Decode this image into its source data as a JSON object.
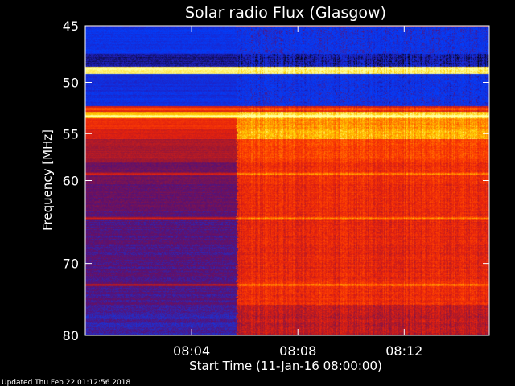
{
  "chart_data": {
    "type": "heatmap",
    "title": "Solar radio Flux (Glasgow)",
    "ylabel": "Frequency [MHz]",
    "xlabel": "Start Time (11-Jan-16 08:00:00)",
    "x_unit": "minutes after 08:00:00",
    "xlim": [
      0,
      15.2
    ],
    "ylim": [
      80,
      45
    ],
    "y_scale": "log",
    "x_ticks": [
      {
        "value": 4,
        "label": "08:04"
      },
      {
        "value": 8,
        "label": "08:08"
      },
      {
        "value": 12,
        "label": "08:12"
      }
    ],
    "y_ticks": [
      {
        "value": 45,
        "label": "45"
      },
      {
        "value": 50,
        "label": "50"
      },
      {
        "value": 55,
        "label": "55"
      },
      {
        "value": 60,
        "label": "60"
      },
      {
        "value": 70,
        "label": "70"
      },
      {
        "value": 80,
        "label": "80"
      }
    ],
    "transition_minute": 5.7,
    "colormap": [
      "#000000",
      "#2020c0",
      "#0040ff",
      "#5a1070",
      "#a01830",
      "#e02010",
      "#ff4000",
      "#ff8000",
      "#ffd000",
      "#ffffa0"
    ],
    "bands": [
      {
        "from": 45,
        "to": 47.4,
        "before": 0.18,
        "after": 0.22
      },
      {
        "from": 47.4,
        "to": 48.5,
        "before": 0.08,
        "after": 0.1
      },
      {
        "from": 48.5,
        "to": 49.2,
        "before": 0.98,
        "after": 0.98
      },
      {
        "from": 49.2,
        "to": 52.2,
        "before": 0.16,
        "after": 0.2
      },
      {
        "from": 52.2,
        "to": 52.8,
        "before": 0.55,
        "after": 0.55
      },
      {
        "from": 52.8,
        "to": 53.4,
        "before": 0.85,
        "after": 0.9
      },
      {
        "from": 53.4,
        "to": 54.5,
        "before": 0.6,
        "after": 0.8
      },
      {
        "from": 54.5,
        "to": 55.5,
        "before": 0.55,
        "after": 0.86
      },
      {
        "from": 55.5,
        "to": 58.0,
        "before": 0.46,
        "after": 0.66
      },
      {
        "from": 58.0,
        "to": 63.5,
        "before": 0.36,
        "after": 0.6
      },
      {
        "from": 63.5,
        "to": 72.0,
        "before": 0.33,
        "after": 0.58
      },
      {
        "from": 72.0,
        "to": 75.5,
        "before": 0.32,
        "after": 0.6
      },
      {
        "from": 75.5,
        "to": 80,
        "before": 0.3,
        "after": 0.5
      }
    ],
    "bright_lines_mhz": [
      52.5,
      53.2,
      59.2,
      64.3,
      72.8
    ]
  },
  "footer": {
    "updated": "Updated Thu Feb 22 01:12:56 2018"
  }
}
